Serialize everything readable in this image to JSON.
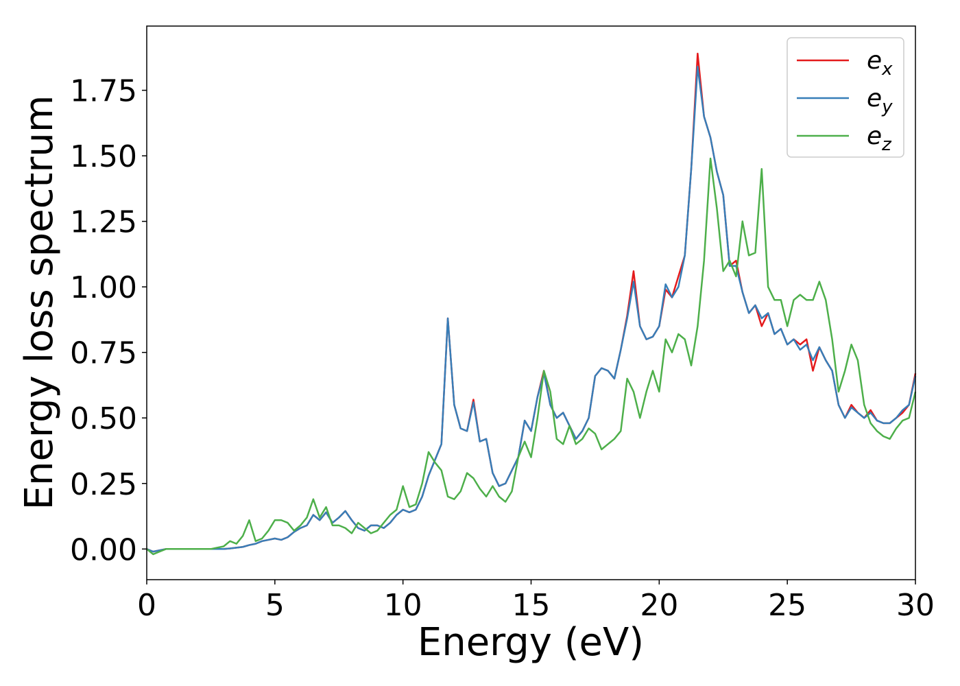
{
  "chart_data": {
    "type": "line",
    "xlabel": "Energy (eV)",
    "ylabel": "Energy loss spectrum",
    "x": [
      0,
      0.25,
      0.5,
      0.75,
      1,
      1.25,
      1.5,
      1.75,
      2,
      2.25,
      2.5,
      2.75,
      3,
      3.25,
      3.5,
      3.75,
      4,
      4.25,
      4.5,
      4.75,
      5,
      5.25,
      5.5,
      5.75,
      6,
      6.25,
      6.5,
      6.75,
      7,
      7.25,
      7.5,
      7.75,
      8,
      8.25,
      8.5,
      8.75,
      9,
      9.25,
      9.5,
      9.75,
      10,
      10.25,
      10.5,
      10.75,
      11,
      11.25,
      11.5,
      11.75,
      12,
      12.25,
      12.5,
      12.75,
      13,
      13.25,
      13.5,
      13.75,
      14,
      14.25,
      14.5,
      14.75,
      15,
      15.25,
      15.5,
      15.75,
      16,
      16.25,
      16.5,
      16.75,
      17,
      17.25,
      17.5,
      17.75,
      18,
      18.25,
      18.5,
      18.75,
      19,
      19.25,
      19.5,
      19.75,
      20,
      20.25,
      20.5,
      20.75,
      21,
      21.25,
      21.5,
      21.75,
      22,
      22.25,
      22.5,
      22.75,
      23,
      23.25,
      23.5,
      23.75,
      24,
      24.25,
      24.5,
      24.75,
      25,
      25.25,
      25.5,
      25.75,
      26,
      26.25,
      26.5,
      26.75,
      27,
      27.25,
      27.5,
      27.75,
      28,
      28.25,
      28.5,
      28.75,
      29,
      29.25,
      29.5,
      29.75,
      30
    ],
    "series": [
      {
        "name": "e_x",
        "color": "#e41a1c",
        "values": [
          0,
          -0.01,
          -0.005,
          0,
          0,
          0,
          0,
          0,
          0,
          0,
          0,
          0,
          0,
          0.002,
          0.005,
          0.008,
          0.015,
          0.02,
          0.03,
          0.035,
          0.04,
          0.035,
          0.045,
          0.065,
          0.08,
          0.09,
          0.13,
          0.11,
          0.14,
          0.1,
          0.12,
          0.145,
          0.11,
          0.08,
          0.07,
          0.09,
          0.09,
          0.08,
          0.1,
          0.13,
          0.15,
          0.14,
          0.15,
          0.2,
          0.28,
          0.34,
          0.4,
          0.88,
          0.55,
          0.46,
          0.45,
          0.57,
          0.41,
          0.42,
          0.29,
          0.24,
          0.25,
          0.3,
          0.35,
          0.49,
          0.45,
          0.58,
          0.68,
          0.55,
          0.5,
          0.52,
          0.47,
          0.42,
          0.45,
          0.5,
          0.66,
          0.69,
          0.68,
          0.65,
          0.76,
          0.89,
          1.06,
          0.85,
          0.8,
          0.81,
          0.85,
          0.99,
          0.96,
          1.04,
          1.12,
          1.45,
          1.89,
          1.65,
          1.57,
          1.44,
          1.35,
          1.08,
          1.1,
          0.98,
          0.9,
          0.93,
          0.85,
          0.9,
          0.82,
          0.84,
          0.78,
          0.8,
          0.78,
          0.8,
          0.68,
          0.77,
          0.72,
          0.68,
          0.55,
          0.5,
          0.55,
          0.52,
          0.5,
          0.53,
          0.49,
          0.48,
          0.48,
          0.5,
          0.52,
          0.55,
          0.67
        ]
      },
      {
        "name": "e_y",
        "color": "#377eb8",
        "values": [
          0,
          -0.01,
          -0.005,
          0,
          0,
          0,
          0,
          0,
          0,
          0,
          0,
          0,
          0,
          0.002,
          0.005,
          0.008,
          0.015,
          0.02,
          0.03,
          0.035,
          0.04,
          0.035,
          0.045,
          0.065,
          0.08,
          0.09,
          0.13,
          0.11,
          0.14,
          0.1,
          0.12,
          0.145,
          0.11,
          0.08,
          0.07,
          0.09,
          0.09,
          0.08,
          0.1,
          0.13,
          0.15,
          0.14,
          0.15,
          0.2,
          0.28,
          0.34,
          0.4,
          0.88,
          0.55,
          0.46,
          0.45,
          0.56,
          0.41,
          0.42,
          0.29,
          0.24,
          0.25,
          0.3,
          0.35,
          0.49,
          0.45,
          0.58,
          0.67,
          0.55,
          0.5,
          0.52,
          0.47,
          0.42,
          0.45,
          0.5,
          0.66,
          0.69,
          0.68,
          0.65,
          0.76,
          0.88,
          1.02,
          0.85,
          0.8,
          0.81,
          0.85,
          1.01,
          0.96,
          1.0,
          1.12,
          1.45,
          1.84,
          1.65,
          1.57,
          1.44,
          1.35,
          1.08,
          1.08,
          0.98,
          0.9,
          0.93,
          0.88,
          0.9,
          0.82,
          0.84,
          0.78,
          0.8,
          0.76,
          0.78,
          0.72,
          0.77,
          0.72,
          0.68,
          0.55,
          0.5,
          0.54,
          0.52,
          0.5,
          0.52,
          0.49,
          0.48,
          0.48,
          0.5,
          0.53,
          0.55,
          0.66
        ]
      },
      {
        "name": "e_z",
        "color": "#4daf4a",
        "values": [
          0,
          -0.02,
          -0.01,
          0,
          0,
          0,
          0,
          0,
          0,
          0,
          0,
          0.005,
          0.01,
          0.03,
          0.02,
          0.05,
          0.11,
          0.03,
          0.04,
          0.07,
          0.11,
          0.11,
          0.1,
          0.07,
          0.09,
          0.12,
          0.19,
          0.12,
          0.16,
          0.09,
          0.09,
          0.08,
          0.06,
          0.1,
          0.08,
          0.06,
          0.07,
          0.1,
          0.13,
          0.15,
          0.24,
          0.16,
          0.17,
          0.25,
          0.37,
          0.33,
          0.3,
          0.2,
          0.19,
          0.22,
          0.29,
          0.27,
          0.23,
          0.2,
          0.24,
          0.2,
          0.18,
          0.22,
          0.35,
          0.41,
          0.35,
          0.5,
          0.68,
          0.6,
          0.42,
          0.4,
          0.47,
          0.4,
          0.42,
          0.46,
          0.44,
          0.38,
          0.4,
          0.42,
          0.45,
          0.65,
          0.6,
          0.5,
          0.6,
          0.68,
          0.6,
          0.8,
          0.75,
          0.82,
          0.8,
          0.7,
          0.85,
          1.1,
          1.49,
          1.3,
          1.06,
          1.1,
          1.04,
          1.25,
          1.12,
          1.13,
          1.45,
          1.0,
          0.95,
          0.95,
          0.85,
          0.95,
          0.97,
          0.95,
          0.95,
          1.02,
          0.95,
          0.8,
          0.6,
          0.68,
          0.78,
          0.72,
          0.55,
          0.48,
          0.45,
          0.43,
          0.42,
          0.46,
          0.49,
          0.5,
          0.6
        ]
      }
    ],
    "xlim": [
      0,
      30
    ],
    "xticks": [
      0,
      5,
      10,
      15,
      20,
      25,
      30
    ],
    "ylim": [
      -0.117,
      1.995
    ],
    "yticks": [
      {
        "value": 0,
        "label": "0.00"
      },
      {
        "value": 0.25,
        "label": "0.25"
      },
      {
        "value": 0.5,
        "label": "0.50"
      },
      {
        "value": 0.75,
        "label": "0.75"
      },
      {
        "value": 1,
        "label": "1.00"
      },
      {
        "value": 1.25,
        "label": "1.25"
      },
      {
        "value": 1.5,
        "label": "1.50"
      },
      {
        "value": 1.75,
        "label": "1.75"
      }
    ],
    "grid": false,
    "legend": "upper right"
  }
}
